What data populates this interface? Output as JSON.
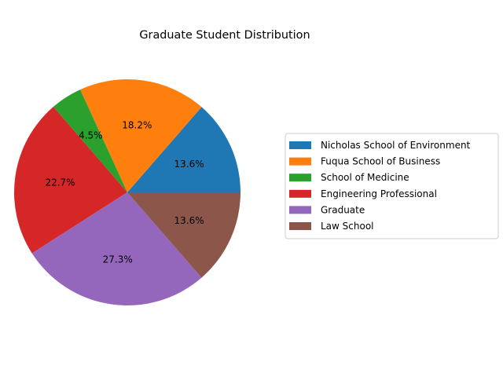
{
  "chart_data": {
    "type": "pie",
    "title": "Graduate Student Distribution",
    "categories": [
      "Nicholas School of Environment",
      "Fuqua School of Business",
      "School of Medicine",
      "Engineering Professional",
      "Graduate",
      "Law School"
    ],
    "values": [
      13.6,
      18.2,
      4.5,
      22.7,
      27.3,
      13.6
    ],
    "labels": [
      "13.6%",
      "18.2%",
      "4.5%",
      "22.7%",
      "27.3%",
      "13.6%"
    ],
    "colors": [
      "#1f77b4",
      "#ff7f0e",
      "#2ca02c",
      "#d62728",
      "#9467bd",
      "#8c564b"
    ],
    "start_angle_deg": 0,
    "direction": "counterclockwise",
    "legend_position": "right"
  }
}
